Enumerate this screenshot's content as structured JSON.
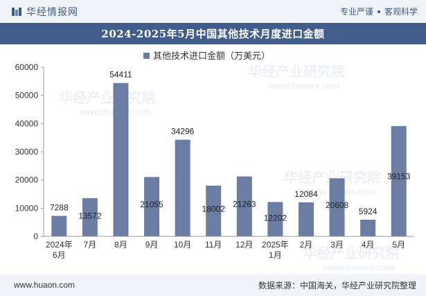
{
  "header": {
    "brand_name": "华经情报网",
    "tagline_left": "专业严谨",
    "tagline_right": "客观科学"
  },
  "title": "2024-2025年5月中国其他技术月度进口金额",
  "footer": {
    "url": "www.huaon.com",
    "source": "数据来源：中国海关，华经产业研究院整理"
  },
  "watermark": {
    "text": "华经产业研究院",
    "url": "www.huaon.com"
  },
  "colors": {
    "bar": "#6b7da3",
    "title_bg": "#415d8b",
    "header_bg": "#f1f4f9"
  },
  "chart_data": {
    "type": "bar",
    "categories": [
      "2024年\n6月",
      "7月",
      "8月",
      "9月",
      "10月",
      "11月",
      "12月",
      "2025年\n1月",
      "2月",
      "3月",
      "4月",
      "5月"
    ],
    "series": [
      {
        "name": "其他技术进口金额（万美元）",
        "values": [
          7288,
          13572,
          54411,
          21055,
          34296,
          18002,
          21263,
          12202,
          12084,
          20608,
          5924,
          39153
        ]
      }
    ],
    "ylim": [
      0,
      60000
    ],
    "yticks": [
      0,
      10000,
      20000,
      30000,
      40000,
      50000,
      60000
    ],
    "legend_position": "top-center",
    "grid": false
  }
}
